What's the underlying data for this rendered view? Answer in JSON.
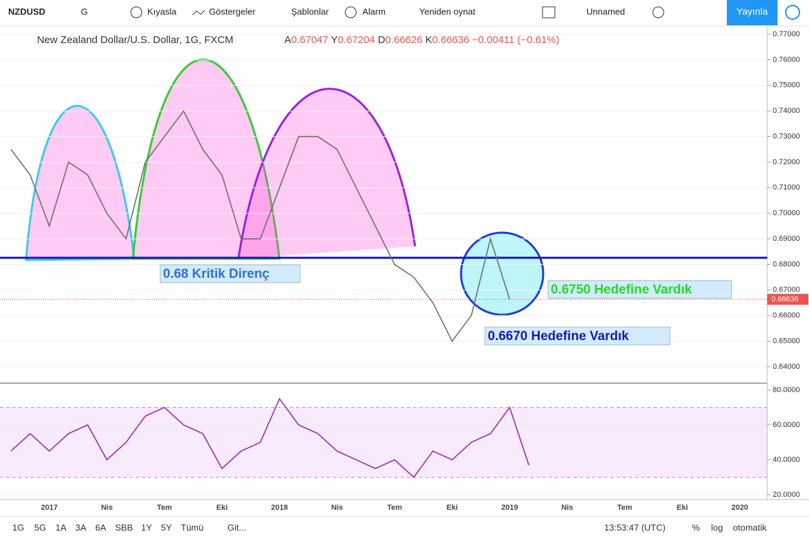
{
  "toolbar": {
    "symbol": "NZDUSD",
    "interval": "G",
    "items": [
      "Kıyasla",
      "Göstergeler",
      "Şablonlar",
      "Alarm",
      "Yeniden oynat"
    ],
    "layout": "Unnamed",
    "publish": "Yayınla"
  },
  "legend": {
    "title": "New Zealand Dollar/U.S. Dollar, 1G, FXCM",
    "open_label": "A",
    "open": "0.67047",
    "high_label": "Y",
    "high": "0.67204",
    "low_label": "D",
    "low": "0.66626",
    "close_label": "K",
    "close": "0.66636",
    "change": "−0.00411 (−0.61%)"
  },
  "chart_data": [
    {
      "type": "line",
      "categories": [
        null,
        null,
        "2017",
        null,
        null,
        "Nis",
        null,
        null,
        "Tem",
        null,
        null,
        "Eki",
        null,
        null,
        "2018",
        null,
        null,
        "Nis",
        null,
        null,
        "Tem",
        null,
        null,
        "Eki",
        null,
        null,
        "2019",
        null,
        null,
        "Nis",
        null,
        null,
        "Tem",
        null,
        null,
        "Eki",
        null,
        null,
        "2020",
        null
      ],
      "series": [
        {
          "color": "#6d6d6d",
          "values": [
            0.725,
            0.715,
            0.695,
            0.72,
            0.715,
            0.7,
            0.69,
            0.72,
            0.73,
            0.74,
            0.725,
            0.715,
            0.69,
            0.69,
            0.71,
            0.73,
            0.73,
            0.725,
            0.71,
            0.695,
            0.68,
            0.675,
            0.665,
            0.65,
            0.66,
            0.69,
            0.66636,
            null,
            null,
            null,
            null,
            null,
            null,
            null,
            null,
            null,
            null,
            null,
            null,
            null
          ]
        }
      ],
      "ylim": [
        0.6341,
        0.7727
      ],
      "yticks": [
        {
          "value": 0.64,
          "label": "0.64000"
        },
        {
          "value": 0.65,
          "label": "0.65000"
        },
        {
          "value": 0.66,
          "label": "0.66000"
        },
        {
          "value": 0.67,
          "label": "0.67000"
        },
        {
          "value": 0.68,
          "label": "0.68000"
        },
        {
          "value": 0.69,
          "label": "0.69000"
        },
        {
          "value": 0.7,
          "label": "0.70000"
        },
        {
          "value": 0.71,
          "label": "0.71000"
        },
        {
          "value": 0.72,
          "label": "0.72000"
        },
        {
          "value": 0.73,
          "label": "0.73000"
        },
        {
          "value": 0.74,
          "label": "0.74000"
        },
        {
          "value": 0.75,
          "label": "0.75000"
        },
        {
          "value": 0.76,
          "label": "0.76000"
        },
        {
          "value": 0.77,
          "label": "0.77000"
        }
      ],
      "hline": {
        "value": 0.6826,
        "color": "#1a1aa6"
      },
      "last_price": {
        "value": 0.66636,
        "label": "0.66636",
        "color": "#ef5350"
      },
      "annotations": [
        {
          "text": "0.68 Kritik Direnç",
          "color": "#2f6fd6"
        },
        {
          "text": "0.6750 Hedefine Vardık",
          "color": "#22dd22"
        },
        {
          "text": "0.6670 Hedefine Vardık",
          "color": "#1a1aa6"
        }
      ]
    },
    {
      "type": "line",
      "series": [
        {
          "color": "#9c27b0",
          "values": [
            45,
            55,
            45,
            55,
            60,
            40,
            50,
            65,
            70,
            60,
            55,
            35,
            45,
            50,
            75,
            60,
            55,
            45,
            40,
            35,
            40,
            30,
            45,
            40,
            50,
            55,
            70,
            37,
            null,
            null,
            null,
            null,
            null,
            null,
            null,
            null,
            null,
            null,
            null,
            null
          ]
        }
      ],
      "ylim": [
        17.25,
        83.1
      ],
      "band": [
        30,
        70
      ],
      "yticks": [
        {
          "value": 20,
          "label": "20.0000"
        },
        {
          "value": 40,
          "label": "40.0000"
        },
        {
          "value": 60,
          "label": "60.0000"
        },
        {
          "value": 80,
          "label": "80.0000"
        }
      ]
    }
  ],
  "bottom": {
    "ranges": [
      "1G",
      "5G",
      "1A",
      "3A",
      "6A",
      "SBB",
      "1Y",
      "5Y",
      "Tümü"
    ],
    "goto": "Git...",
    "time": "13:53:47 (UTC)",
    "options": [
      "%",
      "log",
      "otomatik"
    ]
  }
}
